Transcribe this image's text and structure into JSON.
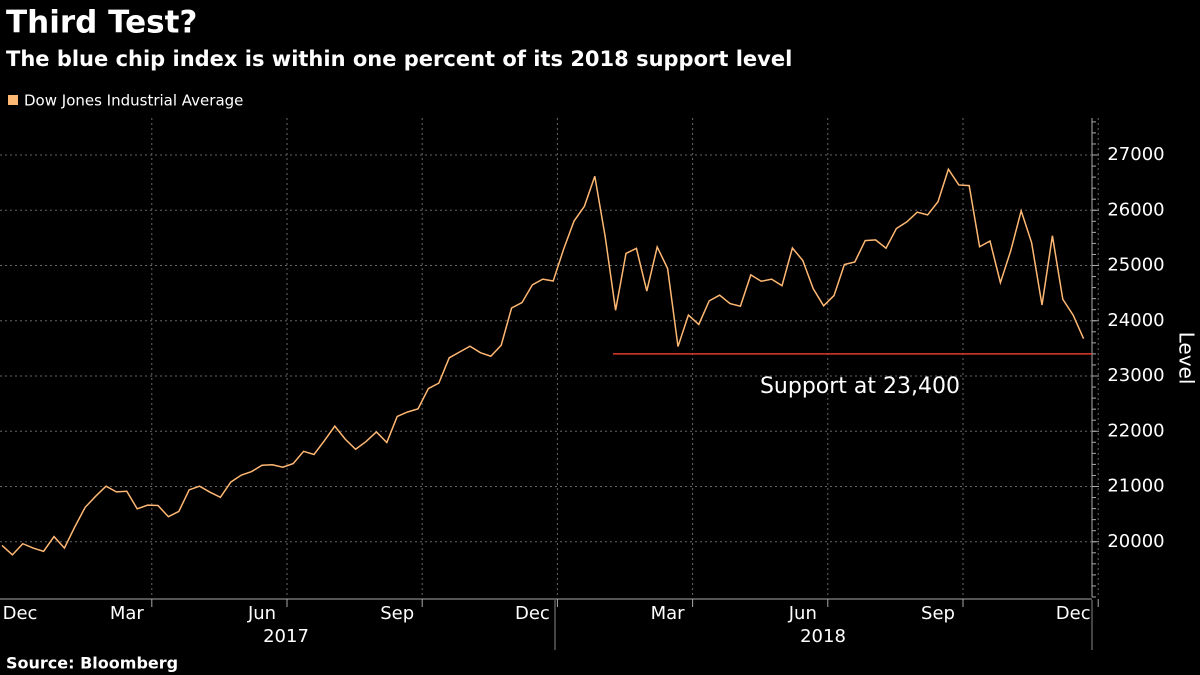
{
  "chart_data": {
    "type": "line",
    "title": "Third Test?",
    "subtitle": "The blue chip index is within one percent of its 2018 support level",
    "y_label": "Level",
    "source": "Source: Bloomberg",
    "years": [
      "2017",
      "2018"
    ],
    "categories": [
      "Dec",
      null,
      null,
      null,
      null,
      null,
      null,
      null,
      null,
      null,
      null,
      null,
      "Mar",
      null,
      null,
      null,
      null,
      null,
      null,
      null,
      null,
      null,
      null,
      null,
      null,
      "Jun",
      null,
      null,
      null,
      null,
      null,
      null,
      null,
      null,
      null,
      null,
      null,
      null,
      "Sep",
      null,
      null,
      null,
      null,
      null,
      null,
      null,
      null,
      null,
      null,
      null,
      null,
      "Dec",
      null,
      null,
      null,
      null,
      null,
      null,
      null,
      null,
      null,
      null,
      null,
      null,
      "Mar",
      null,
      null,
      null,
      null,
      null,
      null,
      null,
      null,
      null,
      null,
      null,
      null,
      "Jun",
      null,
      null,
      null,
      null,
      null,
      null,
      null,
      null,
      null,
      null,
      null,
      null,
      "Sep",
      null,
      null,
      null,
      null,
      null,
      null,
      null,
      null,
      null,
      null,
      null,
      null,
      "Dec",
      null
    ],
    "series": [
      {
        "name": "Dow Jones Industrial Average",
        "color": "#ffb873",
        "values": [
          19933,
          19763,
          19964,
          19886,
          19827,
          20093,
          19885,
          20269,
          20624,
          20822,
          21005,
          20903,
          20914,
          20596,
          20663,
          20656,
          20453,
          20548,
          20940,
          21006,
          20897,
          20804,
          21080,
          21206,
          21271,
          21384,
          21394,
          21349,
          21414,
          21637,
          21580,
          21830,
          22092,
          21858,
          21674,
          21813,
          21988,
          21797,
          22268,
          22349,
          22405,
          22773,
          22871,
          23329,
          23434,
          23539,
          23422,
          23358,
          23557,
          24231,
          24329,
          24651,
          24754,
          24719,
          25295,
          25803,
          26072,
          26616,
          25521,
          24190,
          25219,
          25310,
          24538,
          25336,
          24946,
          23533,
          24103,
          23933,
          24360,
          24463,
          24311,
          24263,
          24831,
          24715,
          24753,
          24635,
          25317,
          25090,
          24581,
          24271,
          24456,
          25019,
          25064,
          25451,
          25463,
          25313,
          25669,
          25790,
          25965,
          25916,
          26154,
          26743,
          26458,
          26447,
          25340,
          25444,
          24689,
          25271,
          25989,
          25413,
          24286,
          25538,
          24389,
          24101,
          23675
        ]
      }
    ],
    "support": {
      "value": 23400,
      "label": "Support at 23,400",
      "color": "#e0392b"
    },
    "ylim": [
      19000,
      27670
    ],
    "yticks": [
      20000,
      21000,
      22000,
      23000,
      24000,
      25000,
      26000,
      27000
    ],
    "grid": true
  }
}
